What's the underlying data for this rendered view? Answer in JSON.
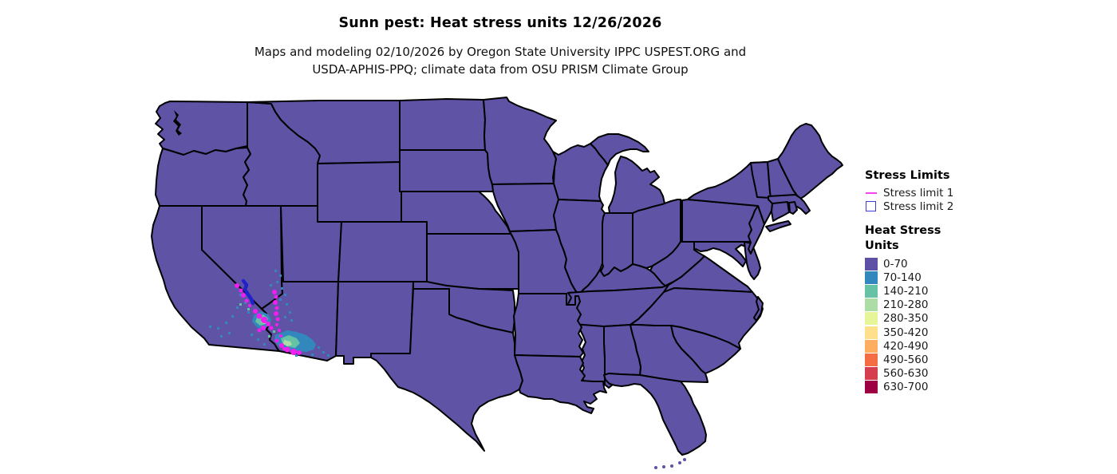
{
  "title": "Sunn pest: Heat stress units 12/26/2026",
  "subtitle_lines": [
    "Maps and modeling 02/10/2026 by Oregon State University IPPC USPEST.ORG and",
    "USDA-APHIS-PPQ; climate data from OSU PRISM Climate Group"
  ],
  "legend": {
    "stress_limits": {
      "title": "Stress Limits",
      "items": [
        {
          "label": "Stress limit 1",
          "sample": "line",
          "color": "#f542ef"
        },
        {
          "label": "Stress limit 2",
          "sample": "box",
          "color": "#3b3bd8"
        }
      ]
    },
    "heat_stress": {
      "title_lines": [
        "Heat Stress",
        "Units"
      ],
      "bins": [
        {
          "label": "0-70",
          "color": "#5e51a5"
        },
        {
          "label": "70-140",
          "color": "#3288bd"
        },
        {
          "label": "140-210",
          "color": "#66c2a5"
        },
        {
          "label": "210-280",
          "color": "#abdda4"
        },
        {
          "label": "280-350",
          "color": "#e6f598"
        },
        {
          "label": "350-420",
          "color": "#fee08b"
        },
        {
          "label": "420-490",
          "color": "#fdae61"
        },
        {
          "label": "490-560",
          "color": "#f46d43"
        },
        {
          "label": "560-630",
          "color": "#d53e4f"
        },
        {
          "label": "630-700",
          "color": "#9e0142"
        }
      ]
    }
  },
  "map": {
    "fill_color": "#5f53a6",
    "border_color": "#000000",
    "background_color": "#ffffff",
    "dominant_bin": "0-70",
    "hotspots": [
      {
        "region": "southern California / southern Nevada / western Arizona deserts",
        "bins": [
          "70-140",
          "140-210",
          "210-280"
        ]
      }
    ],
    "overlays": [
      {
        "name": "stress-limit-1-markers",
        "color": "#f01ef0"
      },
      {
        "name": "stress-limit-2-contour",
        "color": "#2222cc"
      }
    ]
  }
}
